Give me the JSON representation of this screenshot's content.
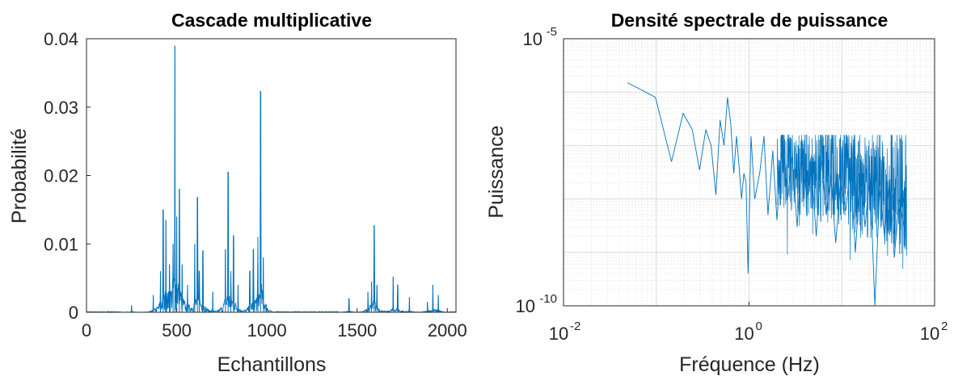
{
  "chart_data": [
    {
      "type": "line",
      "title": "Cascade multiplicative",
      "xlabel": "Echantillons",
      "ylabel": "Probabilité",
      "xlim": [
        0,
        2048
      ],
      "ylim": [
        0,
        0.04
      ],
      "xticks": [
        "0",
        "500",
        "1000",
        "1500",
        "2000"
      ],
      "yticks": [
        "0",
        "0.01",
        "0.02",
        "0.03",
        "0.04"
      ],
      "grid": false,
      "color": "#0072BD",
      "peaks": [
        {
          "x": 250,
          "y": 0.001
        },
        {
          "x": 370,
          "y": 0.0025
        },
        {
          "x": 410,
          "y": 0.006
        },
        {
          "x": 425,
          "y": 0.015
        },
        {
          "x": 440,
          "y": 0.0135
        },
        {
          "x": 460,
          "y": 0.007
        },
        {
          "x": 480,
          "y": 0.01
        },
        {
          "x": 490,
          "y": 0.039
        },
        {
          "x": 500,
          "y": 0.014
        },
        {
          "x": 515,
          "y": 0.018
        },
        {
          "x": 530,
          "y": 0.007
        },
        {
          "x": 560,
          "y": 0.004
        },
        {
          "x": 600,
          "y": 0.01
        },
        {
          "x": 615,
          "y": 0.0168
        },
        {
          "x": 625,
          "y": 0.006
        },
        {
          "x": 645,
          "y": 0.009
        },
        {
          "x": 700,
          "y": 0.003
        },
        {
          "x": 770,
          "y": 0.0092
        },
        {
          "x": 785,
          "y": 0.0205
        },
        {
          "x": 800,
          "y": 0.006
        },
        {
          "x": 815,
          "y": 0.0112
        },
        {
          "x": 840,
          "y": 0.004
        },
        {
          "x": 905,
          "y": 0.006
        },
        {
          "x": 925,
          "y": 0.0092
        },
        {
          "x": 950,
          "y": 0.011
        },
        {
          "x": 965,
          "y": 0.0323
        },
        {
          "x": 980,
          "y": 0.008
        },
        {
          "x": 1455,
          "y": 0.002
        },
        {
          "x": 1560,
          "y": 0.003
        },
        {
          "x": 1580,
          "y": 0.0045
        },
        {
          "x": 1595,
          "y": 0.0127
        },
        {
          "x": 1610,
          "y": 0.004
        },
        {
          "x": 1700,
          "y": 0.0052
        },
        {
          "x": 1725,
          "y": 0.004
        },
        {
          "x": 1790,
          "y": 0.0022
        },
        {
          "x": 1890,
          "y": 0.0015
        },
        {
          "x": 1920,
          "y": 0.004
        },
        {
          "x": 1950,
          "y": 0.0025
        }
      ]
    },
    {
      "type": "line",
      "title": "Densité spectrale de puissance",
      "xlabel": "Fréquence (Hz)",
      "ylabel": "Puissance",
      "xscale": "log",
      "yscale": "log",
      "xlim": [
        0.01,
        100
      ],
      "ylim": [
        1e-10,
        1e-05
      ],
      "xticks": [
        {
          "base": "10",
          "exp": "-2"
        },
        {
          "base": "10",
          "exp": "0"
        },
        {
          "base": "10",
          "exp": "2"
        }
      ],
      "yticks": [
        {
          "base": "10",
          "exp": "-10"
        },
        {
          "base": "10",
          "exp": "-5"
        }
      ],
      "grid": true,
      "color": "#0072BD",
      "x": [
        0.049,
        0.098,
        0.146,
        0.195,
        0.244,
        0.293,
        0.342,
        0.39,
        0.439,
        0.488,
        0.537,
        0.586,
        0.635,
        0.684,
        0.732,
        0.781,
        0.83,
        0.879,
        0.928,
        0.977,
        1.05,
        1.15,
        1.3,
        1.45,
        1.6,
        1.8,
        2.0,
        2.3,
        2.6,
        2.9,
        3.3,
        3.7,
        4.2,
        4.7,
        5.3,
        6.0,
        6.8,
        7.6,
        8.6,
        9.7,
        11.0,
        12.4,
        14.0,
        15.8,
        17.8,
        20.1,
        22.7,
        25.6,
        28.9,
        32.6,
        36.8,
        41.5,
        46.9,
        50.0
      ],
      "y": [
        1.5e-06,
        8e-07,
        5e-08,
        4e-07,
        2e-07,
        3.5e-08,
        2e-07,
        1e-07,
        1.2e-08,
        3e-07,
        1e-07,
        8e-07,
        2.5e-07,
        3e-08,
        1.5e-07,
        4e-08,
        1e-08,
        3e-08,
        2e-08,
        4e-10,
        1.5e-07,
        1e-08,
        3e-08,
        1.5e-07,
        5e-09,
        8e-08,
        4e-09,
        1.2e-07,
        1e-08,
        6e-08,
        3e-09,
        8e-08,
        1e-08,
        4e-08,
        2e-09,
        6e-08,
        5e-09,
        3e-08,
        1.5e-09,
        2e-08,
        6e-09,
        4e-08,
        1e-09,
        2.5e-08,
        3e-09,
        3e-08,
        1e-10,
        1.5e-08,
        2e-09,
        2e-08,
        8e-10,
        1e-08,
        3e-09,
        8e-09
      ]
    }
  ]
}
